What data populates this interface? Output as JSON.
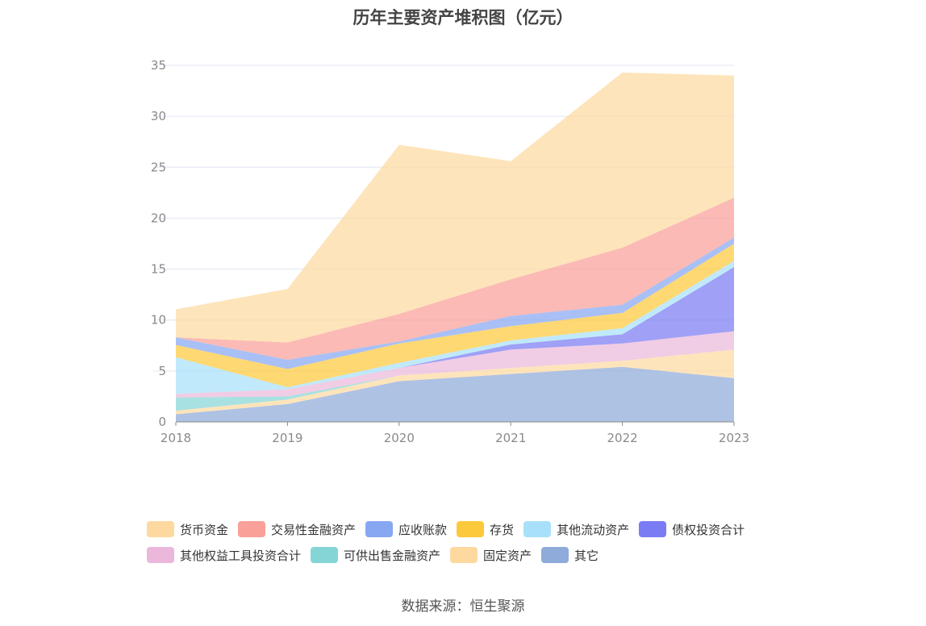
{
  "chart_data": {
    "type": "area",
    "stacked": true,
    "title": "历年主要资产堆积图（亿元）",
    "categories": [
      "2018",
      "2019",
      "2020",
      "2021",
      "2022",
      "2023"
    ],
    "ylim": [
      0,
      35
    ],
    "yticks": [
      0,
      5,
      10,
      15,
      20,
      25,
      30,
      35
    ],
    "grid": true,
    "legend_position": "bottom",
    "series": [
      {
        "name": "其它",
        "color": "#8fabd9",
        "values": [
          0.75,
          1.75,
          4.0,
          4.7,
          5.4,
          4.3
        ]
      },
      {
        "name": "固定资产",
        "color": "#fdd9a0",
        "values": [
          0.35,
          0.45,
          0.55,
          0.6,
          0.6,
          2.8
        ]
      },
      {
        "name": "可供出售金融资产",
        "color": "#86d5d6",
        "values": [
          1.3,
          0.3,
          0.0,
          0.0,
          0.0,
          0.0
        ]
      },
      {
        "name": "其他权益工具投资合计",
        "color": "#ebb8db",
        "values": [
          0.35,
          0.7,
          0.75,
          1.8,
          1.7,
          1.8
        ]
      },
      {
        "name": "债权投资合计",
        "color": "#7a7cf3",
        "values": [
          0.0,
          0.0,
          0.0,
          0.5,
          0.9,
          6.3
        ]
      },
      {
        "name": "其他流动资产",
        "color": "#a8e0fa",
        "values": [
          3.6,
          0.2,
          0.5,
          0.4,
          0.6,
          0.6
        ]
      },
      {
        "name": "存货",
        "color": "#fdc93c",
        "values": [
          1.2,
          1.8,
          1.9,
          1.4,
          1.5,
          1.7
        ]
      },
      {
        "name": "应收账款",
        "color": "#88a7f3",
        "values": [
          0.75,
          0.9,
          0.2,
          1.0,
          0.8,
          0.6
        ]
      },
      {
        "name": "交易性金融资产",
        "color": "#f9a099",
        "values": [
          0.0,
          1.7,
          2.7,
          3.6,
          5.6,
          3.9
        ]
      },
      {
        "name": "货币资金",
        "color": "#fdd9a0",
        "values": [
          2.75,
          5.25,
          16.6,
          11.6,
          17.2,
          12.0
        ]
      }
    ]
  },
  "legend_order": [
    "货币资金",
    "交易性金融资产",
    "应收账款",
    "存货",
    "其他流动资产",
    "债权投资合计",
    "其他权益工具投资合计",
    "可供出售金融资产",
    "固定资产",
    "其它"
  ],
  "source_text": "数据来源：恒生聚源"
}
